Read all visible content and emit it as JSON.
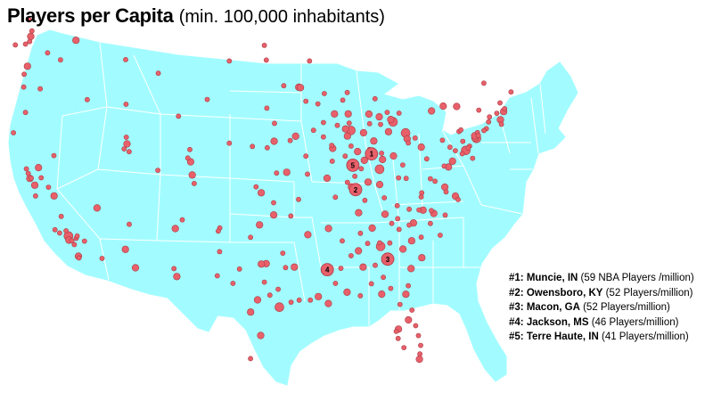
{
  "title": {
    "bold": "Players per Capita",
    "normal": "(min. 100,000 inhabitants)"
  },
  "colors": {
    "land": "#a2fcff",
    "state_border": "#ffffff",
    "dot_fill": "#e8606a",
    "dot_stroke": "#a83c44"
  },
  "top_cities": [
    {
      "rank_label": "#1:",
      "city": "Muncie, IN",
      "detail": "(59 NBA Players /million)",
      "marker": "1",
      "lon": -85.39,
      "lat": 40.19
    },
    {
      "rank_label": "#2:",
      "city": "Owensboro, KY",
      "detail": "(52 Players/million)",
      "marker": "2",
      "lon": -87.11,
      "lat": 37.77
    },
    {
      "rank_label": "#3:",
      "city": "Macon, GA",
      "detail": "(52 Players/million)",
      "marker": "3",
      "lon": -83.63,
      "lat": 32.84
    },
    {
      "rank_label": "#4:",
      "city": "Jackson, MS",
      "detail": " (46 Players/million)",
      "marker": "4",
      "lon": -90.18,
      "lat": 32.3
    },
    {
      "rank_label": "#5:",
      "city": "Terre Haute, IN",
      "detail": "(41 Players/million)",
      "marker": "5",
      "lon": -87.41,
      "lat": 39.47
    }
  ],
  "cities": [
    [
      -122.33,
      47.61,
      3
    ],
    [
      -122.44,
      47.25,
      2
    ],
    [
      -122.9,
      47.04,
      2
    ],
    [
      -122.68,
      45.52,
      3
    ],
    [
      -123.04,
      44.94,
      2
    ],
    [
      -123.09,
      44.05,
      2
    ],
    [
      -117.43,
      47.66,
      3
    ],
    [
      -116.2,
      43.62,
      2
    ],
    [
      -111.89,
      40.76,
      3
    ],
    [
      -111.66,
      40.23,
      2
    ],
    [
      -111.97,
      41.22,
      2
    ],
    [
      -122.42,
      37.77,
      3
    ],
    [
      -122.27,
      37.8,
      2
    ],
    [
      -121.89,
      37.34,
      3
    ],
    [
      -121.49,
      38.58,
      3
    ],
    [
      -119.79,
      36.74,
      3
    ],
    [
      -119.02,
      35.37,
      2
    ],
    [
      -118.24,
      34.05,
      4
    ],
    [
      -118.19,
      33.77,
      3
    ],
    [
      -117.16,
      32.72,
      3
    ],
    [
      -117.4,
      33.95,
      2
    ],
    [
      -117.29,
      34.11,
      2
    ],
    [
      -117.87,
      33.74,
      2
    ],
    [
      -115.14,
      36.17,
      3
    ],
    [
      -119.81,
      39.53,
      2
    ],
    [
      -112.07,
      33.45,
      3
    ],
    [
      -110.97,
      32.22,
      3
    ],
    [
      -106.65,
      35.08,
      3
    ],
    [
      -106.49,
      31.76,
      3
    ],
    [
      -104.99,
      39.74,
      3
    ],
    [
      -104.82,
      38.83,
      3
    ],
    [
      -105.08,
      40.59,
      2
    ],
    [
      -104.61,
      38.25,
      2
    ],
    [
      -108.5,
      45.78,
      2
    ],
    [
      -106.31,
      42.87,
      2
    ],
    [
      -112.04,
      46.59,
      2
    ],
    [
      -96.8,
      32.78,
      3
    ],
    [
      -97.33,
      32.75,
      3
    ],
    [
      -95.37,
      29.76,
      4
    ],
    [
      -98.49,
      29.42,
      3
    ],
    [
      -97.74,
      30.27,
      3
    ],
    [
      -101.85,
      33.58,
      2
    ],
    [
      -101.83,
      35.22,
      2
    ],
    [
      -97.4,
      27.8,
      3
    ],
    [
      -97.52,
      35.47,
      3
    ],
    [
      -95.99,
      36.15,
      3
    ],
    [
      -94.58,
      39.1,
      3
    ],
    [
      -90.2,
      38.63,
      3
    ],
    [
      -93.29,
      37.21,
      2
    ],
    [
      -92.33,
      38.95,
      2
    ],
    [
      -97.34,
      37.69,
      3
    ],
    [
      -95.68,
      39.05,
      2
    ],
    [
      -95.94,
      41.26,
      3
    ],
    [
      -96.68,
      40.81,
      2
    ],
    [
      -93.61,
      41.59,
      3
    ],
    [
      -91.67,
      41.98,
      2
    ],
    [
      -93.27,
      44.98,
      3
    ],
    [
      -93.09,
      44.95,
      3
    ],
    [
      -92.1,
      46.79,
      2
    ],
    [
      -96.79,
      46.88,
      2
    ],
    [
      -96.73,
      43.55,
      2
    ],
    [
      -87.91,
      43.04,
      3
    ],
    [
      -89.4,
      43.07,
      3
    ],
    [
      -88.02,
      44.52,
      2
    ],
    [
      -87.63,
      41.88,
      4
    ],
    [
      -89.59,
      40.69,
      3
    ],
    [
      -89.64,
      39.8,
      2
    ],
    [
      -88.24,
      40.12,
      2
    ],
    [
      -89.09,
      42.27,
      2
    ],
    [
      -86.16,
      39.77,
      3
    ],
    [
      -85.14,
      41.08,
      3
    ],
    [
      -87.56,
      37.97,
      3
    ],
    [
      -86.25,
      41.68,
      3
    ],
    [
      -85.67,
      42.96,
      3
    ],
    [
      -83.05,
      42.33,
      4
    ],
    [
      -84.55,
      42.73,
      3
    ],
    [
      -83.69,
      43.01,
      2
    ],
    [
      -85.59,
      42.29,
      2
    ],
    [
      -83.0,
      39.96,
      3
    ],
    [
      -81.69,
      41.5,
      4
    ],
    [
      -84.51,
      39.1,
      4
    ],
    [
      -83.54,
      41.66,
      3
    ],
    [
      -84.19,
      39.76,
      3
    ],
    [
      -81.52,
      41.08,
      3
    ],
    [
      -80.65,
      41.1,
      2
    ],
    [
      -85.76,
      38.25,
      3
    ],
    [
      -84.5,
      38.04,
      3
    ],
    [
      -86.78,
      36.16,
      3
    ],
    [
      -90.05,
      35.15,
      3
    ],
    [
      -83.92,
      35.96,
      3
    ],
    [
      -85.31,
      35.05,
      3
    ],
    [
      -86.8,
      33.52,
      3
    ],
    [
      -86.59,
      34.73,
      2
    ],
    [
      -86.3,
      32.38,
      3
    ],
    [
      -88.04,
      30.69,
      3
    ],
    [
      -84.39,
      33.75,
      4
    ],
    [
      -81.1,
      32.08,
      3
    ],
    [
      -81.98,
      33.47,
      3
    ],
    [
      -84.98,
      32.46,
      2
    ],
    [
      -81.66,
      30.33,
      3
    ],
    [
      -82.46,
      27.95,
      3
    ],
    [
      -81.38,
      28.54,
      3
    ],
    [
      -80.19,
      25.76,
      3
    ],
    [
      -80.14,
      26.12,
      2
    ],
    [
      -84.28,
      30.44,
      3
    ],
    [
      -81.87,
      26.64,
      2
    ],
    [
      -80.84,
      35.23,
      3
    ],
    [
      -78.64,
      35.78,
      3
    ],
    [
      -79.79,
      36.07,
      3
    ],
    [
      -80.24,
      36.1,
      2
    ],
    [
      -78.9,
      35.99,
      2
    ],
    [
      -77.94,
      34.23,
      2
    ],
    [
      -81.03,
      34.0,
      3
    ],
    [
      -79.93,
      32.78,
      3
    ],
    [
      -82.39,
      34.85,
      2
    ],
    [
      -77.44,
      37.54,
      3
    ],
    [
      -76.29,
      36.85,
      3
    ],
    [
      -79.94,
      37.27,
      2
    ],
    [
      -77.04,
      38.91,
      3
    ],
    [
      -76.61,
      39.29,
      3
    ],
    [
      -79.99,
      40.44,
      3
    ],
    [
      -75.17,
      39.95,
      4
    ],
    [
      -76.88,
      40.27,
      2
    ],
    [
      -75.49,
      40.6,
      2
    ],
    [
      -74.01,
      40.71,
      4
    ],
    [
      -73.76,
      42.65,
      2
    ],
    [
      -78.88,
      42.89,
      3
    ],
    [
      -77.61,
      43.16,
      3
    ],
    [
      -76.15,
      43.05,
      3
    ],
    [
      -74.17,
      40.74,
      3
    ],
    [
      -71.06,
      42.36,
      3
    ],
    [
      -71.41,
      41.82,
      3
    ],
    [
      -72.69,
      41.76,
      2
    ],
    [
      -72.93,
      41.31,
      2
    ],
    [
      -71.46,
      42.99,
      2
    ],
    [
      -70.26,
      43.66,
      2
    ],
    [
      -73.21,
      44.48,
      2
    ],
    [
      -92.29,
      34.75,
      3
    ],
    [
      -94.13,
      36.07,
      2
    ],
    [
      -91.15,
      30.45,
      3
    ],
    [
      -90.07,
      29.95,
      3
    ],
    [
      -93.75,
      32.53,
      3
    ],
    [
      -92.02,
      30.22,
      2
    ],
    [
      -93.22,
      30.23,
      2
    ],
    [
      -89.29,
      31.33,
      2
    ],
    [
      -88.7,
      32.36,
      2
    ],
    [
      -88.56,
      34.26,
      2
    ],
    [
      -89.3,
      37.3,
      2
    ],
    [
      -82.45,
      38.42,
      2
    ],
    [
      -81.63,
      38.35,
      2
    ],
    [
      -80.0,
      37.0,
      2
    ],
    [
      -79.0,
      38.2,
      2
    ],
    [
      -77.5,
      39.0,
      2
    ],
    [
      -75.55,
      39.74,
      2
    ],
    [
      -74.75,
      40.22,
      2
    ],
    [
      -74.42,
      39.36,
      2
    ],
    [
      -81.4,
      40.8,
      2
    ],
    [
      -82.0,
      39.3,
      2
    ],
    [
      -84.3,
      40.2,
      2
    ],
    [
      -86.9,
      40.4,
      3
    ],
    [
      -85.6,
      40.5,
      2
    ],
    [
      -86.5,
      39.2,
      2
    ],
    [
      -87.2,
      38.7,
      2
    ],
    [
      -88.0,
      38.3,
      2
    ],
    [
      -87.6,
      40.8,
      2
    ],
    [
      -83.3,
      42.5,
      3
    ],
    [
      -84.4,
      42.2,
      2
    ],
    [
      -82.4,
      42.9,
      2
    ],
    [
      -85.0,
      44.0,
      2
    ],
    [
      -88.5,
      44.0,
      2
    ],
    [
      -90.5,
      44.5,
      2
    ],
    [
      -91.2,
      43.8,
      2
    ],
    [
      -90.6,
      41.5,
      2
    ],
    [
      -90.6,
      42.5,
      2
    ],
    [
      -92.5,
      40.2,
      2
    ],
    [
      -94.2,
      41.3,
      2
    ],
    [
      -95.9,
      42.5,
      2
    ],
    [
      -98.3,
      40.9,
      2
    ],
    [
      -100.8,
      41.1,
      2
    ],
    [
      -97.9,
      38.1,
      2
    ],
    [
      -96.0,
      37.0,
      2
    ],
    [
      -98.5,
      34.6,
      2
    ],
    [
      -99.7,
      32.4,
      2
    ],
    [
      -97.0,
      31.5,
      2
    ],
    [
      -95.5,
      31.0,
      2
    ],
    [
      -94.1,
      30.1,
      2
    ],
    [
      -96.4,
      30.6,
      2
    ],
    [
      -95.0,
      33.5,
      2
    ],
    [
      -94.7,
      32.5,
      2
    ],
    [
      -100.4,
      31.4,
      2
    ],
    [
      -102.1,
      31.9,
      2
    ],
    [
      -98.5,
      26.2,
      2
    ],
    [
      -106.8,
      32.3,
      2
    ],
    [
      -111.65,
      35.2,
      2
    ],
    [
      -114.6,
      32.7,
      2
    ],
    [
      -119.7,
      34.4,
      2
    ],
    [
      -120.4,
      37.3,
      2
    ],
    [
      -121.2,
      37.9,
      2
    ],
    [
      -121.8,
      36.6,
      2
    ],
    [
      -122.8,
      38.4,
      2
    ],
    [
      -122.6,
      38.1,
      2
    ],
    [
      -116.5,
      33.8,
      2
    ],
    [
      -117.1,
      32.6,
      2
    ],
    [
      -117.6,
      33.5,
      2
    ],
    [
      -118.5,
      34.4,
      2
    ],
    [
      -119.2,
      34.2,
      2
    ],
    [
      -121.3,
      44.05,
      2
    ],
    [
      -122.9,
      42.3,
      2
    ],
    [
      -124.2,
      40.8,
      2
    ],
    [
      -124.0,
      46.9,
      2
    ],
    [
      -122.2,
      48.0,
      2
    ],
    [
      -122.5,
      48.75,
      2
    ],
    [
      -120.5,
      46.6,
      2
    ],
    [
      -119.1,
      46.2,
      2
    ],
    [
      -112.0,
      43.5,
      2
    ],
    [
      -112.2,
      40.4,
      2
    ],
    [
      -108.55,
      39.06,
      2
    ],
    [
      -105.3,
      40.0,
      2
    ],
    [
      -102.0,
      35.0,
      2
    ],
    [
      -105.9,
      35.7,
      2
    ],
    [
      -103.2,
      44.1,
      2
    ],
    [
      -100.8,
      46.8,
      2
    ],
    [
      -97.0,
      47.9,
      2
    ],
    [
      -94.9,
      45.1,
      2
    ],
    [
      -92.5,
      44.0,
      2
    ],
    [
      -89.7,
      40.9,
      2
    ],
    [
      -88.2,
      42.0,
      3
    ],
    [
      -88.0,
      41.5,
      3
    ],
    [
      -87.8,
      42.4,
      2
    ],
    [
      -86.1,
      37.0,
      2
    ],
    [
      -84.0,
      37.1,
      2
    ],
    [
      -82.6,
      36.5,
      2
    ],
    [
      -81.3,
      36.2,
      2
    ],
    [
      -83.2,
      35.3,
      2
    ],
    [
      -82.55,
      35.6,
      2
    ],
    [
      -84.5,
      34.0,
      2
    ],
    [
      -83.4,
      33.95,
      2
    ],
    [
      -85.8,
      34.0,
      2
    ],
    [
      -87.6,
      33.2,
      2
    ],
    [
      -85.4,
      31.2,
      2
    ],
    [
      -86.6,
      30.4,
      2
    ],
    [
      -84.1,
      31.6,
      2
    ],
    [
      -83.3,
      30.8,
      2
    ],
    [
      -82.3,
      29.65,
      2
    ],
    [
      -81.0,
      29.2,
      2
    ],
    [
      -80.6,
      28.1,
      2
    ],
    [
      -82.5,
      27.3,
      2
    ],
    [
      -82.7,
      27.8,
      2
    ],
    [
      -80.3,
      27.4,
      2
    ],
    [
      -80.06,
      26.71,
      2
    ],
    [
      -81.4,
      30.9,
      2
    ],
    [
      -80.0,
      34.2,
      2
    ],
    [
      -81.3,
      35.1,
      2
    ],
    [
      -79.0,
      35.1,
      2
    ],
    [
      -77.4,
      35.6,
      2
    ],
    [
      -76.0,
      36.6,
      2
    ],
    [
      -77.3,
      37.2,
      2
    ],
    [
      -78.5,
      38.0,
      2
    ],
    [
      -79.4,
      39.6,
      2
    ],
    [
      -77.7,
      40.8,
      2
    ],
    [
      -76.3,
      40.0,
      2
    ],
    [
      -75.9,
      41.3,
      2
    ],
    [
      -75.7,
      41.4,
      2
    ],
    [
      -74.9,
      40.1,
      2
    ],
    [
      -74.2,
      40.9,
      3
    ],
    [
      -73.9,
      41.1,
      2
    ],
    [
      -73.2,
      41.2,
      2
    ],
    [
      -72.6,
      42.1,
      2
    ],
    [
      -71.8,
      42.3,
      2
    ],
    [
      -71.3,
      41.5,
      2
    ],
    [
      -70.95,
      42.55,
      2
    ],
    [
      -73.8,
      40.9,
      2
    ]
  ]
}
